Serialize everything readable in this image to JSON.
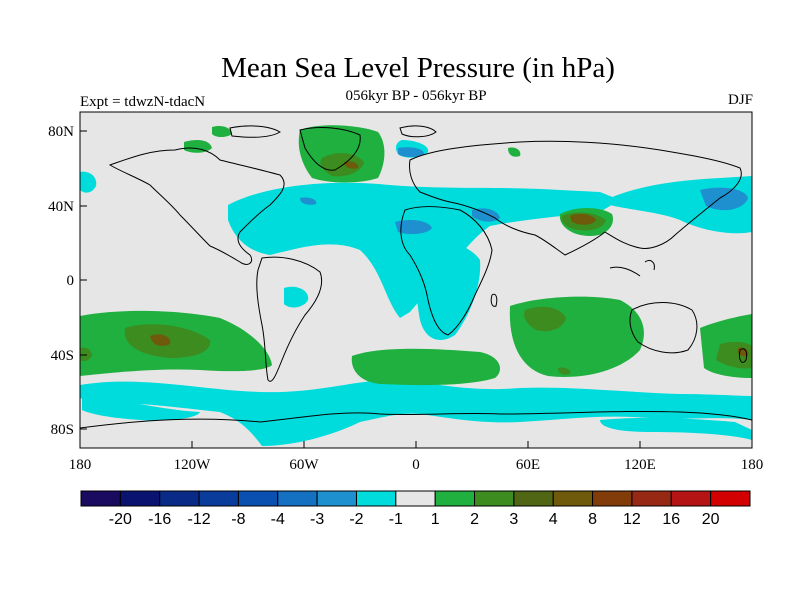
{
  "title": "Mean Sea Level Pressure (in hPa)",
  "subtitle_left": "Expt = tdwzN-tdacN",
  "subtitle_center": "056kyr BP - 056kyr BP",
  "subtitle_right": "DJF",
  "lon_ticks": [
    "180",
    "120W",
    "60W",
    "0",
    "60E",
    "120E",
    "180"
  ],
  "lat_ticks": [
    "80N",
    "40N",
    "0",
    "40S",
    "80S"
  ],
  "colorbar": {
    "colors": [
      "#1a0a60",
      "#0a1470",
      "#0a2a88",
      "#0a3c9c",
      "#0a50b0",
      "#1470c0",
      "#1e90d0",
      "#00dcdc",
      "#e6e6e6",
      "#20b040",
      "#3c8c20",
      "#506614",
      "#6e5a0a",
      "#823c0a",
      "#962814",
      "#b41414",
      "#d20000"
    ],
    "labels": [
      "-20",
      "-16",
      "-12",
      "-8",
      "-4",
      "-3",
      "-2",
      "-1",
      "1",
      "2",
      "3",
      "4",
      "8",
      "12",
      "16",
      "20"
    ]
  },
  "colors": {
    "land_bg": "#e6e6e6",
    "neg_1": "#00dcdc",
    "neg_2": "#1e90d0",
    "pos_1": "#20b040",
    "pos_2": "#3c8c20",
    "pos_3": "#6e5a0a"
  }
}
